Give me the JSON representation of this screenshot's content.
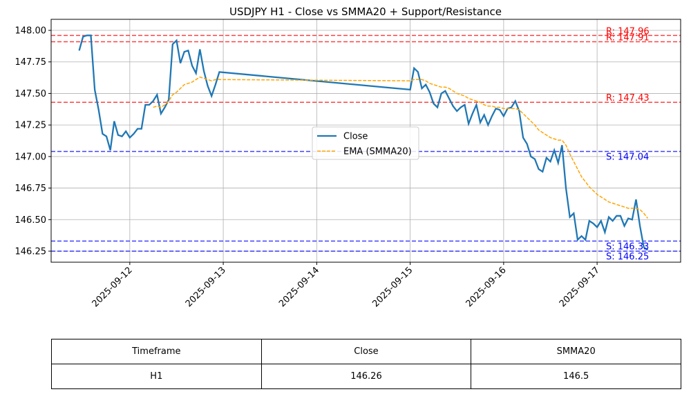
{
  "chart_data": {
    "type": "line",
    "title": "USDJPY H1 - Close vs SMMA20 + Support/Resistance",
    "x": [
      "2025-09-11 11:00",
      "2025-09-11 12:00",
      "2025-09-11 13:00",
      "2025-09-11 14:00",
      "2025-09-11 15:00",
      "2025-09-11 16:00",
      "2025-09-11 17:00",
      "2025-09-11 18:00",
      "2025-09-11 19:00",
      "2025-09-11 20:00",
      "2025-09-11 21:00",
      "2025-09-11 22:00",
      "2025-09-11 23:00",
      "2025-09-12 00:00",
      "2025-09-12 01:00",
      "2025-09-12 02:00",
      "2025-09-12 03:00",
      "2025-09-12 04:00",
      "2025-09-12 05:00",
      "2025-09-12 06:00",
      "2025-09-12 07:00",
      "2025-09-12 08:00",
      "2025-09-12 09:00",
      "2025-09-12 10:00",
      "2025-09-12 11:00",
      "2025-09-12 12:00",
      "2025-09-12 13:00",
      "2025-09-12 14:00",
      "2025-09-12 15:00",
      "2025-09-12 16:00",
      "2025-09-12 17:00",
      "2025-09-12 18:00",
      "2025-09-12 19:00",
      "2025-09-12 20:00",
      "2025-09-12 21:00",
      "2025-09-12 22:00",
      "2025-09-12 23:00",
      "2025-09-15 00:00",
      "2025-09-15 01:00",
      "2025-09-15 02:00",
      "2025-09-15 03:00",
      "2025-09-15 04:00",
      "2025-09-15 05:00",
      "2025-09-15 06:00",
      "2025-09-15 07:00",
      "2025-09-15 08:00",
      "2025-09-15 09:00",
      "2025-09-15 10:00",
      "2025-09-15 11:00",
      "2025-09-15 12:00",
      "2025-09-15 13:00",
      "2025-09-15 14:00",
      "2025-09-15 15:00",
      "2025-09-15 16:00",
      "2025-09-15 17:00",
      "2025-09-15 18:00",
      "2025-09-15 19:00",
      "2025-09-15 20:00",
      "2025-09-15 21:00",
      "2025-09-15 22:00",
      "2025-09-15 23:00",
      "2025-09-16 00:00",
      "2025-09-16 01:00",
      "2025-09-16 02:00",
      "2025-09-16 03:00",
      "2025-09-16 04:00",
      "2025-09-16 05:00",
      "2025-09-16 06:00",
      "2025-09-16 07:00",
      "2025-09-16 08:00",
      "2025-09-16 09:00",
      "2025-09-16 10:00",
      "2025-09-16 11:00",
      "2025-09-16 12:00",
      "2025-09-16 13:00",
      "2025-09-16 14:00",
      "2025-09-16 15:00",
      "2025-09-16 16:00",
      "2025-09-16 17:00",
      "2025-09-16 18:00",
      "2025-09-16 19:00",
      "2025-09-16 20:00",
      "2025-09-16 21:00",
      "2025-09-16 22:00",
      "2025-09-16 23:00",
      "2025-09-17 00:00",
      "2025-09-17 01:00",
      "2025-09-17 02:00",
      "2025-09-17 03:00",
      "2025-09-17 04:00",
      "2025-09-17 05:00",
      "2025-09-17 06:00",
      "2025-09-17 07:00",
      "2025-09-17 08:00",
      "2025-09-17 09:00",
      "2025-09-17 10:00",
      "2025-09-17 11:00",
      "2025-09-17 12:00",
      "2025-09-17 13:00"
    ],
    "series": [
      {
        "name": "Close",
        "color": "#1f77b4",
        "dashed": false,
        "values": [
          147.84,
          147.95,
          147.96,
          147.96,
          147.53,
          147.37,
          147.18,
          147.16,
          147.05,
          147.28,
          147.17,
          147.16,
          147.2,
          147.15,
          147.18,
          147.22,
          147.22,
          147.41,
          147.41,
          147.44,
          147.49,
          147.34,
          147.39,
          147.45,
          147.89,
          147.92,
          147.74,
          147.83,
          147.84,
          147.72,
          147.66,
          147.85,
          147.68,
          147.56,
          147.48,
          147.57,
          147.67,
          147.53,
          147.7,
          147.67,
          147.54,
          147.57,
          147.51,
          147.42,
          147.39,
          147.5,
          147.52,
          147.46,
          147.4,
          147.36,
          147.39,
          147.41,
          147.26,
          147.34,
          147.41,
          147.27,
          147.33,
          147.25,
          147.32,
          147.38,
          147.37,
          147.32,
          147.38,
          147.39,
          147.44,
          147.36,
          147.15,
          147.1,
          147.0,
          146.98,
          146.9,
          146.88,
          146.99,
          146.96,
          147.05,
          146.95,
          147.09,
          146.75,
          146.52,
          146.55,
          146.34,
          146.37,
          146.34,
          146.49,
          146.47,
          146.44,
          146.49,
          146.4,
          146.52,
          146.49,
          146.53,
          146.53,
          146.45,
          146.51,
          146.5,
          146.66,
          146.45,
          146.28,
          146.26
        ]
      },
      {
        "name": "EMA (SMMA20)",
        "color": "#ffa500",
        "dashed": true,
        "values": [
          null,
          null,
          null,
          null,
          null,
          null,
          null,
          null,
          null,
          null,
          null,
          null,
          null,
          null,
          null,
          null,
          null,
          null,
          null,
          147.39,
          147.4,
          147.39,
          147.41,
          147.44,
          147.49,
          147.51,
          147.54,
          147.57,
          147.58,
          147.59,
          147.61,
          147.63,
          147.62,
          147.61,
          147.6,
          147.61,
          147.61,
          147.6,
          147.61,
          147.61,
          147.61,
          147.6,
          147.58,
          147.57,
          147.56,
          147.55,
          147.55,
          147.54,
          147.52,
          147.5,
          147.49,
          147.48,
          147.46,
          147.45,
          147.44,
          147.43,
          147.41,
          147.4,
          147.4,
          147.39,
          147.39,
          147.38,
          147.38,
          147.38,
          147.38,
          147.37,
          147.34,
          147.31,
          147.28,
          147.25,
          147.21,
          147.19,
          147.17,
          147.15,
          147.14,
          147.13,
          147.13,
          147.09,
          147.02,
          146.96,
          146.9,
          146.84,
          146.8,
          146.76,
          146.73,
          146.7,
          146.68,
          146.66,
          146.64,
          146.63,
          146.62,
          146.61,
          146.6,
          146.59,
          146.59,
          146.59,
          146.58,
          146.55,
          146.51
        ]
      }
    ],
    "levels": [
      {
        "value": 147.96,
        "label": "R: 147.96",
        "color": "#ff0000"
      },
      {
        "value": 147.91,
        "label": "R: 147.91",
        "color": "#ff0000"
      },
      {
        "value": 147.43,
        "label": "R: 147.43",
        "color": "#ff0000"
      },
      {
        "value": 147.04,
        "label": "S: 147.04",
        "color": "#0000ff"
      },
      {
        "value": 146.33,
        "label": "S: 146.33",
        "color": "#0000ff"
      },
      {
        "value": 146.25,
        "label": "S: 146.25",
        "color": "#0000ff"
      }
    ],
    "xlim": [
      "2025-09-11 03:48",
      "2025-09-17 21:27"
    ],
    "xticks": [
      "2025-09-12",
      "2025-09-13",
      "2025-09-14",
      "2025-09-15",
      "2025-09-16",
      "2025-09-17"
    ],
    "ylim": [
      146.1625,
      148.0875
    ],
    "yticks": [
      146.25,
      {
        "value": 146.5,
        "label": "146.50"
      },
      146.75,
      {
        "value": 147,
        "label": "147.00"
      },
      147.25,
      {
        "value": 147.5,
        "label": "147.50"
      },
      147.75,
      {
        "value": 148,
        "label": "148.00"
      }
    ],
    "grid": true,
    "legend": "center"
  },
  "table": {
    "header": [
      "Timeframe",
      "Close",
      "SMMA20"
    ],
    "rows": [
      [
        "H1",
        "146.26",
        "146.5"
      ]
    ]
  }
}
